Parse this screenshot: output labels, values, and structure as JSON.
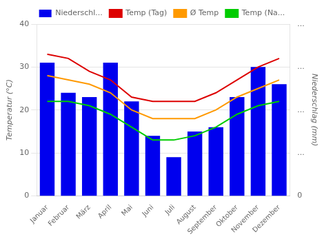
{
  "chart_data": {
    "type": "bar",
    "categories": [
      "Januar",
      "Februar",
      "März",
      "April",
      "Mai",
      "Juni",
      "Juli",
      "August",
      "September",
      "Oktober",
      "November",
      "Dezember"
    ],
    "series": [
      {
        "name": "Niederschl...",
        "type": "bar",
        "color": "#0000ee",
        "axis": "y2",
        "values": [
          31,
          24,
          23,
          31,
          22,
          14,
          9,
          15,
          16,
          23,
          30,
          26
        ]
      },
      {
        "name": "Temp (Tag)",
        "type": "line",
        "color": "#dd0000",
        "values": [
          33,
          32,
          29,
          27,
          23,
          22,
          22,
          22,
          24,
          27,
          30,
          32
        ]
      },
      {
        "name": "Ø Temp",
        "type": "line",
        "color": "#ff9900",
        "values": [
          28,
          27,
          26,
          24,
          20,
          18,
          18,
          18,
          20,
          23,
          25,
          27
        ]
      },
      {
        "name": "Temp (Na...",
        "type": "line",
        "color": "#00cc00",
        "values": [
          22,
          22,
          21,
          19,
          16,
          13,
          13,
          14,
          16,
          19,
          21,
          22
        ]
      }
    ],
    "ylabel": "Temperatur (°C)",
    "y2label": "Niederschlag (mm)",
    "ylim": [
      0,
      40
    ],
    "yticks": [
      0,
      10,
      20,
      30,
      40
    ],
    "y2lim": [
      0,
      40
    ],
    "y2ticks": [
      0,
      {
        "value": 10,
        "label": "..."
      },
      {
        "value": 20,
        "label": "..."
      },
      {
        "value": 30,
        "label": "..."
      },
      {
        "value": 40,
        "label": "..."
      }
    ],
    "grid": true,
    "legend": "top"
  }
}
